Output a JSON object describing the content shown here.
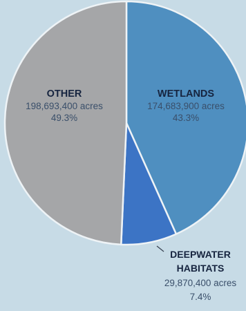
{
  "chart_data": {
    "type": "pie",
    "title": "",
    "slices": [
      {
        "name": "WETLANDS",
        "value": 43.3,
        "value_label": "174,683,900 acres",
        "percent_label": "43.3%",
        "color": "#4f8fc0"
      },
      {
        "name": "DEEPWATER HABITATS",
        "name_lines": [
          "DEEPWATER",
          "HABITATS"
        ],
        "value": 7.4,
        "value_label": "29,870,400 acres",
        "percent_label": "7.4%",
        "color": "#3c74c5"
      },
      {
        "name": "OTHER",
        "value": 49.3,
        "value_label": "198,693,400 acres",
        "percent_label": "49.3%",
        "color": "#a5a6a8"
      }
    ],
    "colors": {
      "background": "#c7dbe6",
      "edge": "#eef3f6",
      "name_text": "#16243f",
      "value_text": "#3a4f6a"
    }
  }
}
